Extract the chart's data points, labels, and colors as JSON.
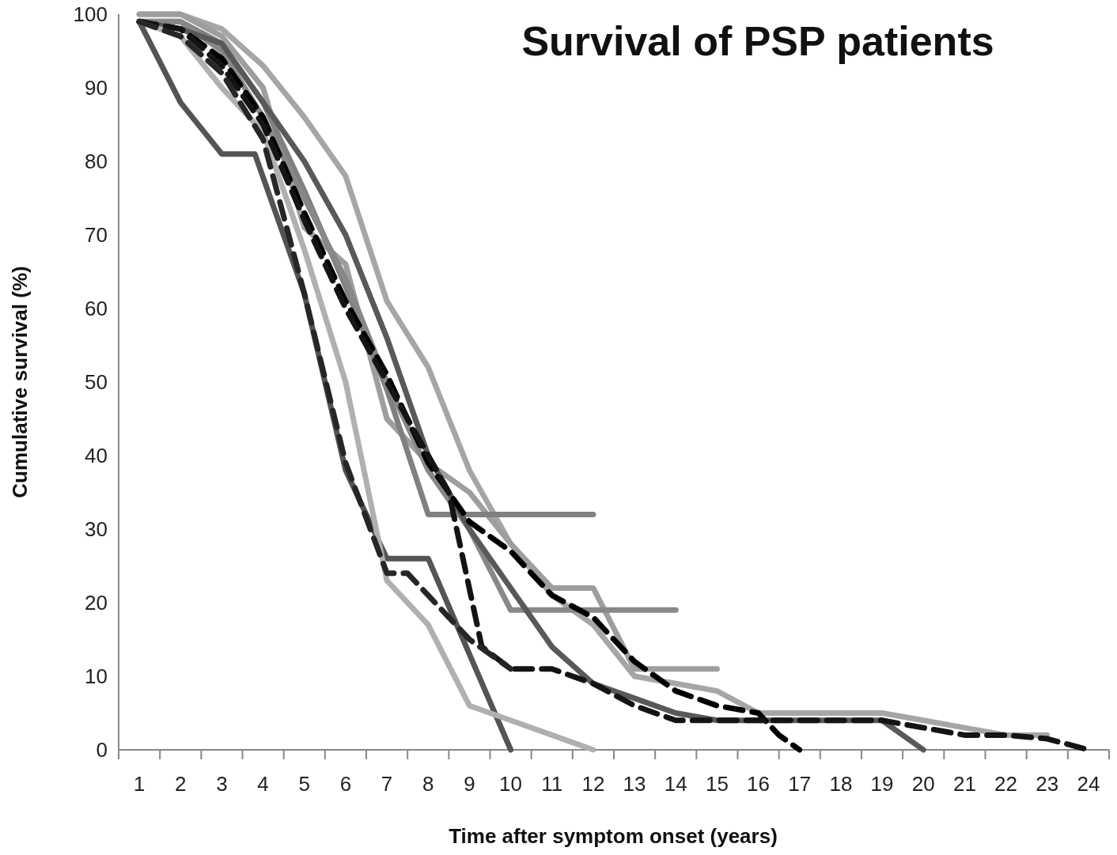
{
  "chart_data": {
    "type": "line",
    "title": "Survival of PSP patients",
    "xlabel": "Time after symptom onset (years)",
    "ylabel": "Cumulative survival (%)",
    "xlim": [
      0.5,
      24.5
    ],
    "ylim": [
      0,
      100
    ],
    "yticks": [
      0,
      10,
      20,
      30,
      40,
      50,
      60,
      70,
      80,
      90,
      100
    ],
    "xticks": [
      1,
      2,
      3,
      4,
      5,
      6,
      7,
      8,
      9,
      10,
      11,
      12,
      13,
      14,
      15,
      16,
      17,
      18,
      19,
      20,
      21,
      22,
      23,
      24
    ],
    "series": [
      {
        "color": "#545454",
        "line_style": "solid",
        "x": [
          1,
          2,
          3,
          3.8,
          5,
          6,
          7,
          8,
          9,
          10
        ],
        "values": [
          99,
          88,
          81,
          81,
          62,
          38,
          26,
          26,
          13,
          0
        ]
      },
      {
        "color": "#a6a6a6",
        "line_style": "solid",
        "x": [
          1,
          2,
          3,
          4,
          5,
          6,
          7,
          8,
          9,
          10,
          11,
          12,
          13,
          14,
          15,
          16,
          17,
          18,
          19,
          20,
          21,
          22,
          23
        ],
        "values": [
          100,
          100,
          98,
          93,
          86,
          78,
          61,
          52,
          38,
          28,
          21,
          17,
          10,
          9,
          8,
          5,
          5,
          5,
          5,
          4,
          3,
          2,
          2
        ]
      },
      {
        "color": "#9e9e9e",
        "line_style": "solid",
        "x": [
          1,
          2,
          3,
          4,
          5,
          6,
          7,
          8,
          9,
          10,
          11,
          12,
          13,
          14,
          15
        ],
        "values": [
          100,
          100,
          97,
          90,
          71,
          66,
          45,
          39,
          35,
          28,
          22,
          22,
          11,
          11,
          11
        ]
      },
      {
        "color": "#808080",
        "line_style": "solid",
        "x": [
          1,
          2,
          3,
          4,
          5,
          6,
          7,
          8,
          9,
          10,
          11,
          12
        ],
        "values": [
          99,
          99,
          96,
          88,
          76,
          63,
          49,
          32,
          32,
          32,
          32,
          32
        ]
      },
      {
        "color": "#888888",
        "line_style": "solid",
        "x": [
          1,
          2,
          3,
          4,
          5,
          6,
          7,
          8,
          9,
          10,
          11,
          12,
          13,
          14
        ],
        "values": [
          99,
          99,
          95,
          86,
          75,
          64,
          50,
          38,
          30,
          19,
          19,
          19,
          19,
          19
        ]
      },
      {
        "color": "#595959",
        "line_style": "solid",
        "x": [
          1,
          2,
          3,
          4,
          5,
          6,
          7,
          8,
          9,
          10,
          11,
          12,
          13,
          14,
          15,
          16,
          17,
          18,
          19,
          20
        ],
        "values": [
          99,
          98,
          96,
          88,
          80,
          70,
          56,
          40,
          30,
          22,
          14,
          9,
          7,
          5,
          4,
          4,
          4,
          4,
          4,
          0
        ]
      },
      {
        "color": "#b0b0b0",
        "line_style": "solid",
        "x": [
          1,
          2,
          3,
          4,
          5,
          6,
          7,
          8,
          9,
          10,
          11,
          12
        ],
        "values": [
          99,
          97,
          90,
          84,
          68,
          50,
          23,
          17,
          6,
          4,
          2,
          0
        ]
      },
      {
        "color": "#000000",
        "line_style": "dashed",
        "x": [
          1,
          2,
          3,
          4,
          5,
          6,
          7,
          8,
          9,
          10,
          11,
          12,
          13,
          14,
          15,
          16,
          16.5,
          17
        ],
        "values": [
          99,
          98,
          94,
          86,
          73,
          61,
          51,
          39,
          31,
          27,
          21,
          18,
          12,
          8,
          6,
          5,
          2,
          0
        ]
      },
      {
        "color": "#141414",
        "line_style": "dashed",
        "x": [
          1,
          2,
          3,
          4,
          5,
          6,
          7,
          8,
          8.5,
          9.3,
          10,
          11,
          12,
          13,
          14,
          15,
          16,
          17,
          18,
          19,
          20,
          21,
          22,
          23,
          24
        ],
        "values": [
          99,
          98,
          93,
          85,
          72,
          60,
          50,
          40,
          35,
          14,
          11,
          11,
          9,
          6,
          4,
          4,
          4,
          4,
          4,
          4,
          3,
          2,
          2,
          1.5,
          0
        ]
      },
      {
        "color": "#262626",
        "line_style": "dashed",
        "x": [
          1,
          2,
          3,
          4,
          5,
          6,
          7,
          7.5,
          8,
          9,
          10
        ],
        "values": [
          99,
          97,
          92,
          83,
          62,
          39,
          24,
          24,
          21,
          15,
          11
        ]
      }
    ]
  }
}
